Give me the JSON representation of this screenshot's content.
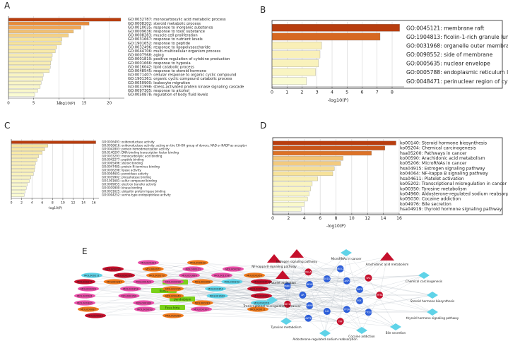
{
  "panel_labels": {
    "A": "A",
    "B": "B",
    "C": "C",
    "D": "D",
    "E": "E"
  },
  "colors": {
    "bar_dark": "#b83d0e",
    "bar_mid": "#e9832f",
    "bar_light": "#f7e39a",
    "bar_pale": "#fafbd2",
    "node_pink": "#e84fa8",
    "node_orange": "#f07a1c",
    "node_cyan": "#5fd3e8",
    "node_blue": "#2e5fd9",
    "node_red": "#c5102c",
    "node_green": "#7ad11a",
    "edge": "#9aa4b0"
  },
  "chart_data": [
    {
      "panel": "A",
      "type": "bar",
      "orientation": "horizontal",
      "categories": [
        "GO:0032787: monocarboxylic acid metabolic process",
        "GO:0008202: steroid metabolic process",
        "GO:0010035: response to inorganic substance",
        "GO:0009636: response to toxic substance",
        "GO:0008283: muscle cell proliferation",
        "GO:0031667: response to nutrient levels",
        "GO:1901652: response to peptide",
        "GO:0032496: response to lipopolysaccharide",
        "GO:0044706: multi-multicellular organism process",
        "GO:0007568: aging",
        "GO:0001819: positive regulation of cytokine production",
        "GO:0001666: response to hypoxia",
        "GO:0016042: lipid catabolic process",
        "GO:0048545: response to steroid hormone",
        "GO:0071407: cellular response to organic cyclic compound",
        "GO:1901361: organic cyclic compound catabolic process",
        "GO:0050900: leukocyte migration",
        "GO:0031998: stress-activated protein kinase signaling cascade",
        "GO:0097305: response to alcohol",
        "GO:0050878: regulation of body fluid levels"
      ],
      "values": [
        22.3,
        16.0,
        14.4,
        12.9,
        11.9,
        10.6,
        10.5,
        9.6,
        9.3,
        8.7,
        8.6,
        8.4,
        8.3,
        8.1,
        6.9,
        6.8,
        6.5,
        6.3,
        5.8,
        5.2
      ],
      "xlabel": "-log10(P)",
      "xlim": [
        0,
        23
      ],
      "xticks": [
        0,
        5,
        10,
        15,
        20
      ]
    },
    {
      "panel": "B",
      "type": "bar",
      "orientation": "horizontal",
      "categories": [
        "GO:0045121: membrane raft",
        "GO:1904813: ficolin-1-rich granule lumen",
        "GO:0031968: organelle outer membrane",
        "GO:0098552: side of membrane",
        "GO:0005635: nuclear envelope",
        "GO:0005788: endoplasmic reticulum lumen",
        "GO:0048471: perinuclear region of cytoplasm"
      ],
      "values": [
        8.5,
        7.2,
        3.3,
        3.2,
        3.1,
        2.9,
        2.3
      ],
      "xlabel": "-log10(P)",
      "xlim": [
        0,
        8.8
      ],
      "xticks": [
        0,
        1,
        2,
        3,
        4,
        5,
        6,
        7,
        8
      ]
    },
    {
      "panel": "C",
      "type": "bar",
      "orientation": "horizontal",
      "categories": [
        "GO:0016491: oxidoreductase activity",
        "GO:0016616: oxidoreductase activity, acting on the CH-OH group of donors, NAD or NADP as acceptor",
        "GO:0042803: protein homodimerization activity",
        "GO:0140297: DNA-binding transcription factor binding",
        "GO:0033293: monocarboxylic acid binding",
        "GO:0042277: peptide binding",
        "GO:0005496: steroid binding",
        "GO:0047485: protein N-terminus binding",
        "GO:0016298: lipase activity",
        "GO:0004601: peroxidase activity",
        "GO:0019902: phosphatase binding",
        "GO:1901681: sulfur compound binding",
        "GO:0009055: electron transfer activity",
        "GO:0019900: kinase binding",
        "GO:0031625: ubiquitin protein ligase binding",
        "GO:0004252: serine-type endopeptidase activity"
      ],
      "values": [
        16.4,
        7.1,
        6.5,
        6.0,
        5.3,
        5.0,
        4.7,
        4.6,
        4.5,
        4.3,
        3.8,
        3.5,
        3.1,
        2.9,
        2.7,
        2.5
      ],
      "xlabel": "-log10(P)",
      "xlim": [
        0,
        17
      ],
      "xticks": [
        0,
        2,
        4,
        6,
        8,
        10,
        12,
        14,
        16
      ]
    },
    {
      "panel": "D",
      "type": "bar",
      "orientation": "horizontal",
      "categories": [
        "ko00140: Steroid hormone biosynthesis",
        "ko05204: Chemical carcinogenesis",
        "hsa05200: Pathways in cancer",
        "ko00590: Arachidonic acid metabolism",
        "ko05206: MicroRNAs in cancer",
        "hsa04915: Estrogen signaling pathway",
        "ko04064: NF-kappa B signaling pathway",
        "hsa04611: Platelet activation",
        "ko05202: Transcriptional misregulation in cancer",
        "ko00350: Tyrosine metabolism",
        "ko04960: Aldosterone-regulated sodium reabsorption",
        "ko05030: Cocaine addiction",
        "ko04976: Bile secretion",
        "hsa04919: thyroid hormone signaling pathway"
      ],
      "values": [
        15.6,
        14.2,
        12.5,
        8.9,
        8.6,
        7.8,
        7.6,
        5.7,
        5.0,
        4.8,
        4.6,
        4.4,
        4.0,
        3.6
      ],
      "xlabel": "-log10(P)",
      "xlim": [
        0,
        16
      ],
      "xticks": [
        0,
        2,
        4,
        6,
        8,
        10,
        12,
        14,
        16
      ]
    }
  ],
  "network": {
    "center_labels": [
      "Pachyma",
      "Kudzu",
      "Dendrobium",
      "Ficus hirta"
    ],
    "molecules": [
      "MOL000316",
      "MOL000033",
      "MOL000296",
      "MOL000072",
      "MOL000311",
      "MOL000292",
      "MOL000211",
      "MOL000239",
      "MOL000273",
      "MOL001689",
      "MOL001558",
      "MOL000263",
      "MOL000275",
      "MOL000287",
      "MOL000422",
      "MOL000098",
      "MOL000398",
      "MOL000392",
      "MOL000471",
      "MOL000296",
      "MOL000358",
      "MOL002295",
      "MOL000354",
      "MOL000006",
      "MOL000561",
      "MOL000359",
      "MOL000449",
      "MOL001602",
      "MOL000290",
      "MOL000300",
      "MOL000280",
      "MOL000283",
      "MOL000276",
      "MOL000087",
      "MOL000093",
      "MOL000397",
      "MOL000011",
      "MOL000022",
      "MOL000289"
    ],
    "pathways": [
      "NF-kappa B signaling pathway",
      "Estrogen signaling pathway",
      "MicroRNAs in cancer",
      "Arachidonic acid metabolism",
      "Platelet activation",
      "Chemical carcinogenesis",
      "Steroid hormone biosynthesis",
      "thyroid hormone signaling pathway",
      "Bile secretion",
      "Cocaine addiction",
      "Aldosterone-regulated sodium reabsorption",
      "Tyrosine metabolism",
      "Transcriptional misregulation in cancer"
    ],
    "hub_genes": [
      "CYP3A4",
      "ESR1",
      "PTGS2",
      "CYP1A1",
      "TNF",
      "IL6",
      "AKT1",
      "MAPK8",
      "HSD11B1",
      "AR",
      "PPARG",
      "HMOX1",
      "RELA",
      "SOD1",
      "NR3C1",
      "CASP3",
      "SRC",
      "EGFR"
    ]
  }
}
